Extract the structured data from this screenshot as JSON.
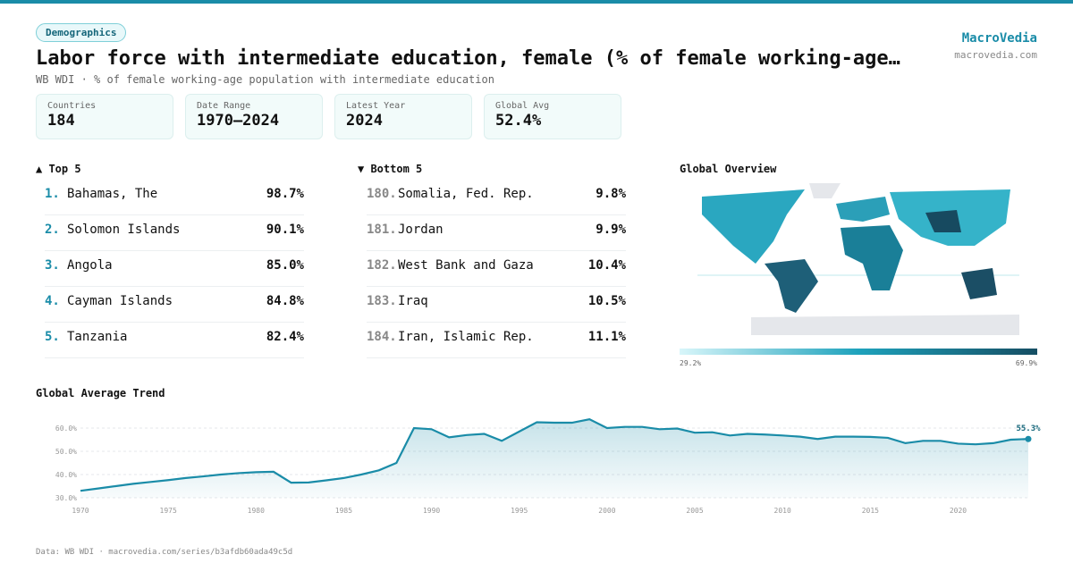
{
  "tag": "Demographics",
  "title": "Labor force with intermediate education, female (% of female working-age…",
  "subtitle": "WB WDI · % of female working-age population with intermediate education",
  "brand": "MacroVedia",
  "site": "macrovedia.com",
  "stats": [
    {
      "label": "Countries",
      "value": "184"
    },
    {
      "label": "Date Range",
      "value": "1970–2024"
    },
    {
      "label": "Latest Year",
      "value": "2024"
    },
    {
      "label": "Global Avg",
      "value": "52.4%"
    }
  ],
  "top": {
    "title": "▲ Top 5",
    "rows": [
      [
        "1.",
        "Bahamas, The",
        "98.7%"
      ],
      [
        "2.",
        "Solomon Islands",
        "90.1%"
      ],
      [
        "3.",
        "Angola",
        "85.0%"
      ],
      [
        "4.",
        "Cayman Islands",
        "84.8%"
      ],
      [
        "5.",
        "Tanzania",
        "82.4%"
      ]
    ]
  },
  "bottom": {
    "title": "▼ Bottom 5",
    "rows": [
      [
        "180.",
        "Somalia, Fed. Rep.",
        "9.8%"
      ],
      [
        "181.",
        "Jordan",
        "9.9%"
      ],
      [
        "182.",
        "West Bank and Gaza",
        "10.4%"
      ],
      [
        "183.",
        "Iraq",
        "10.5%"
      ],
      [
        "184.",
        "Iran, Islamic Rep.",
        "11.1%"
      ]
    ]
  },
  "map": {
    "title": "Global Overview",
    "legend_min": "29.2%",
    "legend_max": "69.9%"
  },
  "chart_data": {
    "type": "line",
    "title": "Global Average Trend",
    "color": "#1a8ca8",
    "x": [
      1970,
      1971,
      1972,
      1973,
      1974,
      1975,
      1976,
      1977,
      1978,
      1979,
      1980,
      1981,
      1982,
      1983,
      1984,
      1985,
      1986,
      1987,
      1988,
      1989,
      1990,
      1991,
      1992,
      1993,
      1994,
      1995,
      1996,
      1997,
      1998,
      1999,
      2000,
      2001,
      2002,
      2003,
      2004,
      2005,
      2006,
      2007,
      2008,
      2009,
      2010,
      2011,
      2012,
      2013,
      2014,
      2015,
      2016,
      2017,
      2018,
      2019,
      2020,
      2021,
      2022,
      2023,
      2024
    ],
    "values": [
      33,
      34,
      35,
      36,
      36.8,
      37.6,
      38.5,
      39.2,
      40,
      40.6,
      41,
      41.2,
      36.5,
      36.6,
      37.5,
      38.5,
      40,
      41.8,
      45,
      60,
      59.5,
      56,
      57,
      57.5,
      54.5,
      58.5,
      62.5,
      62.3,
      62.3,
      63.8,
      60,
      60.5,
      60.5,
      59.5,
      59.8,
      58,
      58.2,
      56.8,
      57.5,
      57.2,
      56.8,
      56.3,
      55.3,
      56.3,
      56.3,
      56.2,
      55.8,
      53.5,
      54.5,
      54.5,
      53.3,
      53,
      53.5,
      55,
      55.3
    ],
    "value_labels": [
      null,
      null,
      null,
      null,
      null,
      null,
      null,
      null,
      null,
      null,
      null,
      null,
      null,
      null,
      null,
      null,
      null,
      null,
      null,
      null,
      null,
      null,
      null,
      null,
      null,
      null,
      null,
      null,
      null,
      null,
      null,
      null,
      null,
      null,
      null,
      null,
      null,
      null,
      null,
      null,
      null,
      null,
      null,
      null,
      null,
      null,
      null,
      null,
      null,
      null,
      null,
      null,
      null,
      null,
      "55.3%"
    ],
    "xlim": [
      1970,
      2024
    ],
    "xticks": [
      1970,
      1975,
      1980,
      1985,
      1990,
      1995,
      2000,
      2005,
      2010,
      2015,
      2020
    ],
    "ylim": [
      30,
      65
    ],
    "yticks": [
      {
        "value": 30,
        "label": "30.0%"
      },
      {
        "value": 40,
        "label": "40.0%"
      },
      {
        "value": 50,
        "label": "50.0%"
      },
      {
        "value": 60,
        "label": "60.0%"
      }
    ],
    "grid": true
  },
  "footer": "Data: WB WDI · macrovedia.com/series/b3afdb60ada49c5d"
}
